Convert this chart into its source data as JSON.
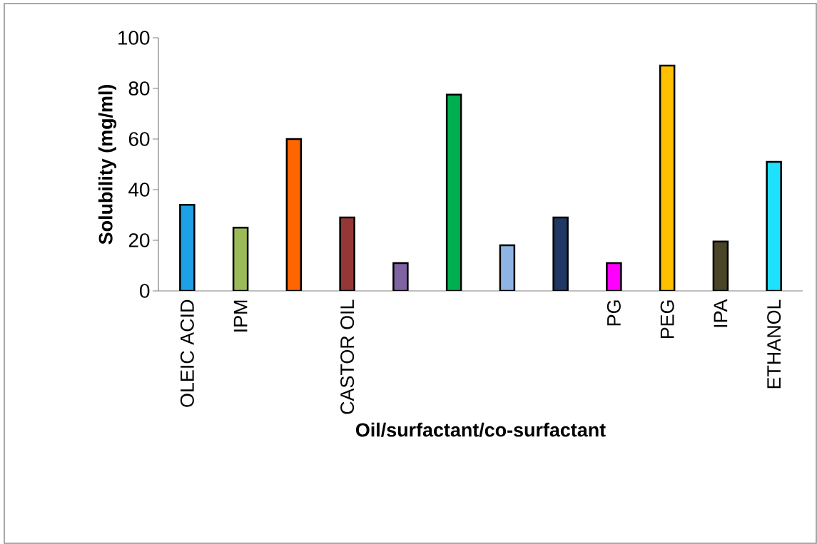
{
  "chart_data": {
    "type": "bar",
    "xlabel": "Oil/surfactant/co-surfactant",
    "ylabel": "Solubility (mg/ml)",
    "categories": [
      "OLEIC ACID",
      "IPM",
      null,
      "CASTOR OIL",
      null,
      null,
      null,
      null,
      "PG",
      "PEG",
      "IPA",
      "ETHANOL"
    ],
    "values": [
      34,
      25,
      60,
      29,
      11,
      77.5,
      18,
      29,
      11,
      89,
      19.5,
      51
    ],
    "colors": [
      "#1ea0e6",
      "#9bbb59",
      "#ff6600",
      "#953735",
      "#8064a2",
      "#00b050",
      "#8eb4e3",
      "#1f3864",
      "#ff00ff",
      "#ffc000",
      "#4a4527",
      "#1fe0ff"
    ],
    "ylim": [
      0,
      100
    ],
    "yticks": [
      0,
      20,
      40,
      60,
      80,
      100
    ]
  }
}
